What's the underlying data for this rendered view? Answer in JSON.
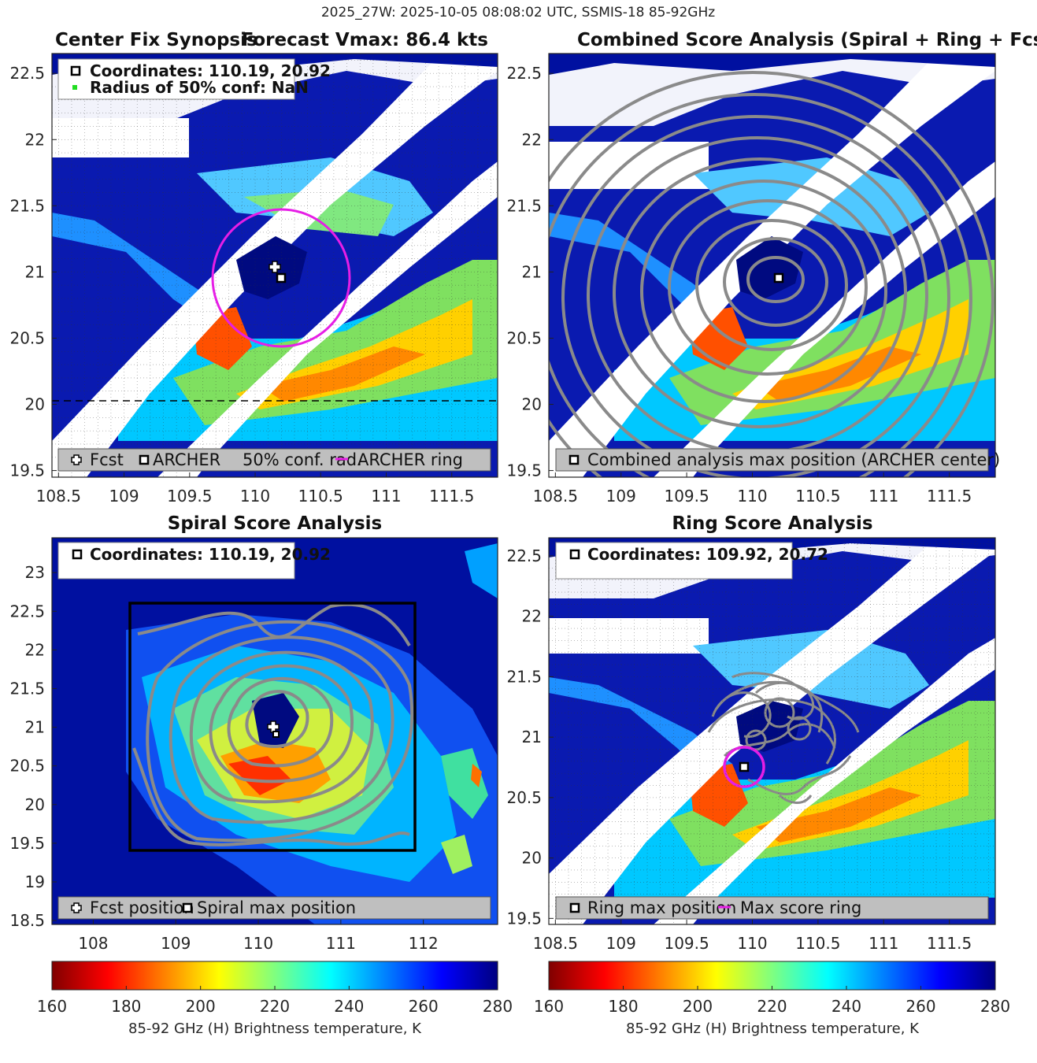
{
  "figure_title": "2025_27W: 2025-10-05 08:08:02 UTC, SSMIS-18 85-92GHz",
  "colors": {
    "background": "#ffffff",
    "ring": "#e61ee6",
    "contour": "#8a8a8a",
    "legend_bg": "#bfbfbf",
    "grid": "#333333"
  },
  "panels": [
    {
      "id": "synopsis",
      "title_left": "Center Fix Synopsis",
      "title_right": "Forecast Vmax: 86.4 kts",
      "info_lines": [
        "Coordinates: 110.19, 20.92",
        "Radius of 50% conf: NaN"
      ],
      "legend": [
        "Fcst",
        "ARCHER",
        "50% conf. rad.",
        "ARCHER ring"
      ]
    },
    {
      "id": "combined",
      "title": "Combined Score Analysis (Spiral + Ring + Fcst_Pe",
      "legend": [
        "Combined analysis max position (ARCHER center)"
      ]
    },
    {
      "id": "spiral",
      "title": "Spiral Score Analysis",
      "info_lines": [
        "Coordinates: 110.19, 20.92"
      ],
      "legend": [
        "Fcst position",
        "Spiral max position"
      ]
    },
    {
      "id": "ring",
      "title": "Ring Score Analysis",
      "info_lines": [
        "Coordinates: 109.92, 20.72"
      ],
      "legend": [
        "Ring max position",
        "Max score ring"
      ]
    }
  ],
  "colorbar": {
    "label": "85-92 GHz (H) Brightness temperature, K",
    "ticks": [
      "160",
      "180",
      "200",
      "220",
      "240",
      "260",
      "280"
    ],
    "range": [
      160,
      280
    ]
  },
  "chart_data": [
    {
      "type": "heatmap",
      "panel": "synopsis",
      "xlim": [
        108.45,
        111.85
      ],
      "ylim": [
        19.45,
        22.65
      ],
      "xticks": [
        108.5,
        109,
        109.5,
        110,
        110.5,
        111,
        111.5
      ],
      "yticks": [
        19.5,
        20,
        20.5,
        21,
        21.5,
        22,
        22.5
      ],
      "grid": true,
      "reference_latitude": 20,
      "forecast_position": [
        110.15,
        21.0
      ],
      "archer_center": [
        110.19,
        20.92
      ],
      "ring_center": [
        110.19,
        20.92
      ],
      "ring_radius_deg": 0.5
    },
    {
      "type": "heatmap",
      "panel": "combined",
      "xlim": [
        108.45,
        111.85
      ],
      "ylim": [
        19.45,
        22.65
      ],
      "xticks": [
        108.5,
        109,
        109.5,
        110,
        110.5,
        111,
        111.5
      ],
      "yticks": [
        19.5,
        20,
        20.5,
        21,
        21.5,
        22,
        22.5
      ],
      "grid": false,
      "max_position": [
        110.19,
        20.92
      ]
    },
    {
      "type": "heatmap",
      "panel": "spiral",
      "xlim": [
        107.5,
        112.9
      ],
      "ylim": [
        18.45,
        23.45
      ],
      "xticks": [
        108,
        109,
        110,
        111,
        112
      ],
      "yticks": [
        18.5,
        19,
        19.5,
        20,
        20.5,
        21,
        21.5,
        22,
        22.5,
        23
      ],
      "grid": false,
      "forecast_position": [
        110.15,
        21.0
      ],
      "max_position": [
        110.19,
        20.92
      ],
      "search_box": [
        108.4,
        19.45,
        111.9,
        22.65
      ]
    },
    {
      "type": "heatmap",
      "panel": "ring",
      "xlim": [
        108.45,
        111.85
      ],
      "ylim": [
        19.45,
        22.65
      ],
      "xticks": [
        108.5,
        109,
        109.5,
        110,
        110.5,
        111,
        111.5
      ],
      "yticks": [
        19.5,
        20,
        20.5,
        21,
        21.5,
        22,
        22.5
      ],
      "grid": true,
      "max_position": [
        109.92,
        20.72
      ],
      "ring_center": [
        109.92,
        20.72
      ],
      "ring_radius_deg": 0.15
    }
  ]
}
